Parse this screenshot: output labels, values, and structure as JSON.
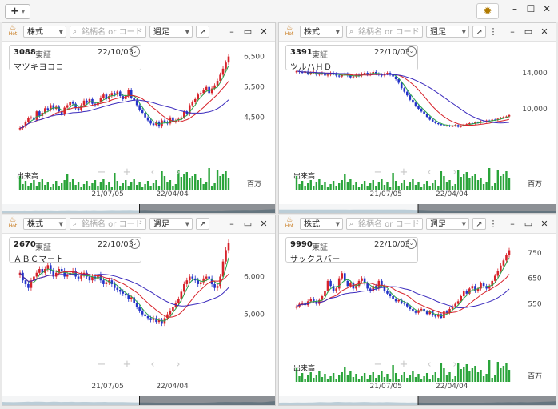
{
  "app": {
    "add_button": "+",
    "window_controls": [
      "–",
      "☐",
      "✕"
    ]
  },
  "panels": [
    {
      "id": "p1",
      "toolbar": {
        "hot_label": "Hot",
        "type": "株式",
        "search_placeholder": "銘柄名 or コード",
        "period": "週足"
      },
      "info": {
        "code": "3088",
        "market": "東証",
        "date": "22/10/03",
        "name": "マツキヨココ"
      },
      "y_ticks": [
        "6,500",
        "5,500",
        "4,500"
      ],
      "x_ticks": [
        "21/07/05",
        "22/04/04"
      ],
      "volume_label": "出来高",
      "unit_label": "百万",
      "has_volume": true,
      "chart_data": {
        "type": "line",
        "ylim": [
          3600,
          6700
        ],
        "y_ticks": [
          6500,
          5500,
          4500
        ],
        "x_ticks": [
          "21/07/05",
          "22/04/04"
        ],
        "close": [
          4150,
          4200,
          4350,
          4480,
          4500,
          4420,
          4700,
          4550,
          4650,
          4800,
          4750,
          4900,
          4780,
          4850,
          4700,
          4600,
          4820,
          4900,
          5000,
          4950,
          4800,
          4750,
          4900,
          5050,
          4980,
          5100,
          4950,
          4900,
          5000,
          5150,
          5250,
          5100,
          5200,
          5300,
          5250,
          5350,
          5200,
          5100,
          5200,
          5400,
          5150,
          5050,
          4900,
          4750,
          4650,
          4500,
          4400,
          4300,
          4250,
          4350,
          4200,
          4400,
          4350,
          4300,
          4500,
          4350,
          4400,
          4450,
          4500,
          4700,
          4600,
          4900,
          5000,
          5100,
          5250,
          5300,
          5400,
          5500,
          5300,
          5450,
          5550,
          5700,
          5900,
          6100,
          6300,
          6500
        ]
      }
    },
    {
      "id": "p2",
      "toolbar": {
        "hot_label": "Hot",
        "type": "株式",
        "search_placeholder": "銘柄名 or コード",
        "period": "週足"
      },
      "info": {
        "code": "3391",
        "market": "東証",
        "date": "22/10/03",
        "name": "ツルハＨＤ"
      },
      "y_ticks": [
        "14,000",
        "10,000"
      ],
      "x_ticks": [
        "21/07/05",
        "22/04/04"
      ],
      "volume_label": "出来高",
      "unit_label": "百万",
      "has_volume": true,
      "chart_data": {
        "type": "line",
        "ylim": [
          6000,
          16500
        ],
        "y_ticks": [
          14000,
          10000
        ],
        "x_ticks": [
          "21/07/05",
          "22/04/04"
        ],
        "close": [
          14200,
          14100,
          14000,
          14150,
          13900,
          14000,
          14100,
          13800,
          13900,
          14000,
          13700,
          13800,
          14000,
          13900,
          13700,
          13600,
          13800,
          13900,
          13700,
          13500,
          13600,
          13800,
          13700,
          13900,
          14000,
          13800,
          13900,
          14100,
          13900,
          13800,
          13700,
          13900,
          14000,
          13800,
          13600,
          13300,
          12900,
          12300,
          11900,
          11500,
          11000,
          10700,
          10300,
          10000,
          9700,
          9400,
          9100,
          8800,
          8600,
          8400,
          8300,
          8200,
          8100,
          8150,
          8050,
          8100,
          8200,
          8000,
          8100,
          8250,
          8300,
          8400,
          8350,
          8500,
          8450,
          8600,
          8550,
          8700,
          8650,
          8800,
          8750,
          8900,
          9000,
          9100,
          9150,
          9300
        ]
      }
    },
    {
      "id": "p3",
      "toolbar": {
        "hot_label": "Hot",
        "type": "株式",
        "search_placeholder": "銘柄名 or コード",
        "period": "週足"
      },
      "info": {
        "code": "2670",
        "market": "東証",
        "date": "22/10/03",
        "name": "ＡＢＣマート"
      },
      "y_ticks": [
        "6,000",
        "5,000"
      ],
      "x_ticks": [
        "21/07/05",
        "22/04/04"
      ],
      "volume_label": "",
      "unit_label": "",
      "has_volume": false,
      "chart_data": {
        "type": "line",
        "ylim": [
          4400,
          6900
        ],
        "y_ticks": [
          6000,
          5000
        ],
        "x_ticks": [
          "21/07/05",
          "22/04/04"
        ],
        "close": [
          6100,
          5900,
          5800,
          5700,
          5900,
          6000,
          6100,
          6200,
          6100,
          6200,
          6300,
          6150,
          6000,
          6100,
          6200,
          6150,
          6000,
          6050,
          6100,
          6150,
          6000,
          5950,
          6050,
          6100,
          6000,
          5900,
          6000,
          5950,
          6050,
          5900,
          5800,
          5850,
          5900,
          5800,
          5700,
          5650,
          5600,
          5550,
          5500,
          5400,
          5450,
          5300,
          5200,
          5100,
          5000,
          4950,
          4900,
          4850,
          4900,
          4800,
          4850,
          4750,
          4900,
          5000,
          5100,
          5200,
          5300,
          5400,
          5600,
          5800,
          5900,
          6000,
          5950,
          5900,
          5800,
          5850,
          5950,
          6000,
          5950,
          5800,
          5700,
          5750,
          6000,
          6400,
          6700,
          6900
        ]
      }
    },
    {
      "id": "p4",
      "toolbar": {
        "hot_label": "Hot",
        "type": "株式",
        "search_placeholder": "銘柄名 or コード",
        "period": "週足"
      },
      "info": {
        "code": "9990",
        "market": "東証",
        "date": "22/10/03",
        "name": "サックスバー"
      },
      "y_ticks": [
        "750",
        "650",
        "550"
      ],
      "x_ticks": [
        "21/07/05",
        "22/04/04"
      ],
      "volume_label": "出来高",
      "unit_label": "百万",
      "has_volume": true,
      "chart_data": {
        "type": "line",
        "ylim": [
          420,
          790
        ],
        "y_ticks": [
          750,
          650,
          550
        ],
        "x_ticks": [
          "21/07/05",
          "22/04/04"
        ],
        "close": [
          540,
          550,
          555,
          545,
          560,
          570,
          560,
          550,
          565,
          580,
          600,
          640,
          620,
          600,
          610,
          650,
          670,
          640,
          620,
          630,
          610,
          620,
          640,
          650,
          630,
          610,
          600,
          620,
          610,
          640,
          620,
          600,
          590,
          580,
          570,
          560,
          565,
          555,
          550,
          540,
          530,
          520,
          515,
          525,
          530,
          520,
          510,
          520,
          505,
          500,
          510,
          495,
          520,
          515,
          530,
          540,
          550,
          560,
          580,
          600,
          590,
          610,
          620,
          600,
          610,
          630,
          620,
          610,
          620,
          640,
          660,
          680,
          700,
          720,
          740,
          760
        ]
      }
    }
  ],
  "nav_icons": [
    "zoom-out",
    "zoom-in",
    "prev",
    "next"
  ],
  "colors": {
    "up": "#d7222a",
    "down": "#2433c9",
    "ma_short": "#28a54a",
    "ma_mid": "#d7222a",
    "ma_long": "#3b2bbd",
    "volume": "#2aa43a",
    "navigator_fill": "#7a9fb2",
    "navigator_dark": "#3c4148"
  }
}
